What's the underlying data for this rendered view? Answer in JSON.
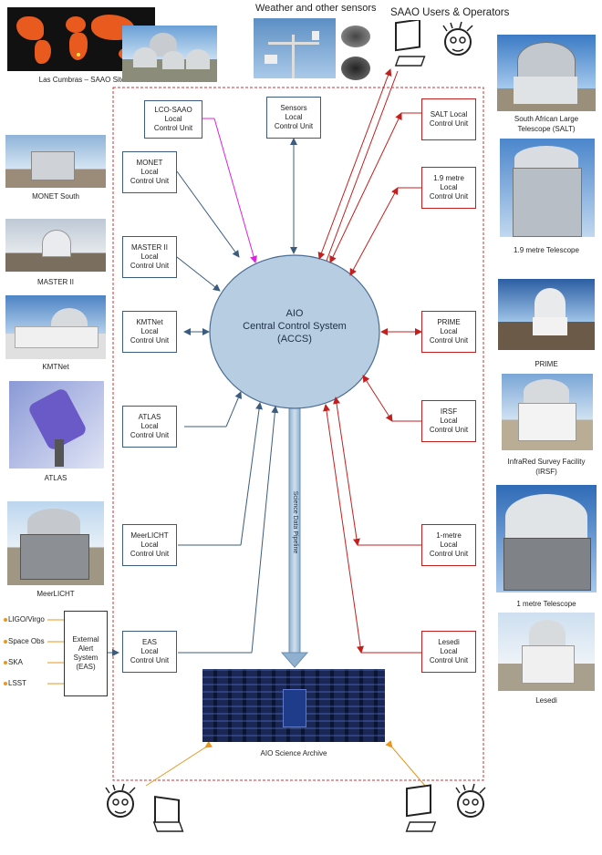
{
  "headers": {
    "weather": "Weather and other sensors",
    "users": "SAAO Users & Operators"
  },
  "center": {
    "line1": "AIO",
    "line2": "Central Control System",
    "line3": "(ACCS)"
  },
  "pipeline_label": "Science Data Pipeline",
  "archive_label": "AIO Science Archive",
  "left_captions": {
    "lascumbras": "Las Cumbras – SAAO Site",
    "monet": "MONET South",
    "master": "MASTER II",
    "kmtnet": "KMTNet",
    "atlas": "ATLAS",
    "meerlicht": "MeerLICHT"
  },
  "right_captions": {
    "salt_1": "South African Large",
    "salt_2": "Telescope (SALT)",
    "onenine": "1.9 metre Telescope",
    "prime": "PRIME",
    "irsf_1": "InfraRed Survey Facility",
    "irsf_2": "(IRSF)",
    "onemetre": "1 metre Telescope",
    "lesedi": "Lesedi"
  },
  "left_units": {
    "lco": [
      "LCO-SAAO",
      "Local",
      "Control Unit"
    ],
    "monet": [
      "MONET",
      "Local",
      "Control Unit"
    ],
    "master": [
      "MASTER II",
      "Local",
      "Control Unit"
    ],
    "kmtnet": [
      "KMTNet",
      "Local",
      "Control Unit"
    ],
    "atlas": [
      "ATLAS",
      "Local",
      "Control Unit"
    ],
    "meerlicht": [
      "MeerLICHT",
      "Local",
      "Control Unit"
    ],
    "eas": [
      "EAS",
      "Local",
      "Control Unit"
    ]
  },
  "sensors_unit": [
    "Sensors",
    "Local",
    "Control Unit"
  ],
  "right_units": {
    "salt": [
      "SALT Local",
      "Control Unit"
    ],
    "onenine": [
      "1.9 metre",
      "Local",
      "Control Unit"
    ],
    "prime": [
      "PRIME",
      "Local",
      "Control Unit"
    ],
    "irsf": [
      "IRSF",
      "Local",
      "Control Unit"
    ],
    "onemetre": [
      "1-metre",
      "Local",
      "Control Unit"
    ],
    "lesedi": [
      "Lesedi",
      "Local",
      "Control Unit"
    ]
  },
  "external_alert": [
    "External",
    "Alert",
    "System",
    "(EAS)"
  ],
  "alert_sources": [
    "LIGO/Virgo",
    "Space Obs",
    "SKA",
    "LSST"
  ],
  "colors": {
    "blue_line": "#3b5c7e",
    "red_line": "#c41f1f",
    "magenta_line": "#e020e0",
    "orange_line": "#e8961e",
    "ellipse_fill": "#b7cde2",
    "ellipse_stroke": "#4a6d94",
    "dashed_border": "#d03030"
  }
}
